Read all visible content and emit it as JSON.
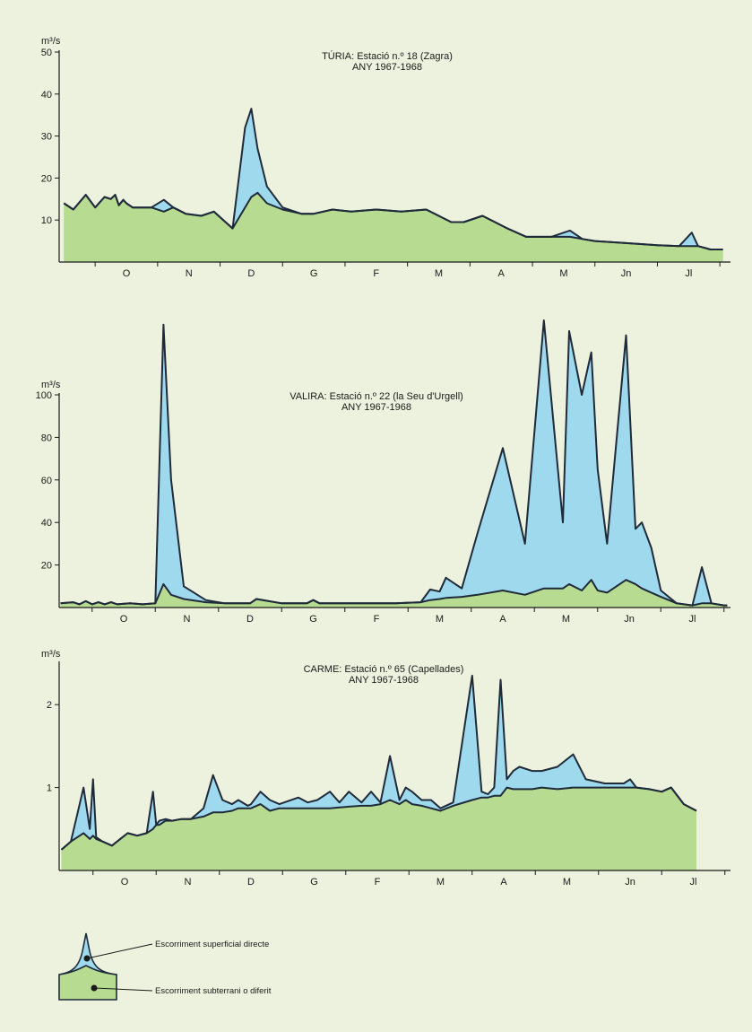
{
  "chart_data": [
    {
      "type": "area",
      "title": "TÚRIA: Estació n.º 18 (Zagra)",
      "subtitle": "ANY 1967-1968",
      "ylabel": "m³/s",
      "ylim": [
        0,
        50
      ],
      "yticks": [
        "10",
        "20",
        "30",
        "40",
        "50"
      ],
      "ytick_values": [
        10,
        20,
        30,
        40,
        50
      ],
      "months": [
        "O",
        "N",
        "D",
        "G",
        "F",
        "M",
        "A",
        "M",
        "Jn",
        "Jl"
      ],
      "month_positions": [
        1,
        2,
        3,
        4,
        5,
        6,
        7,
        8,
        9,
        10
      ],
      "xlim": [
        0,
        10.55
      ],
      "series": [
        {
          "kind": "total",
          "x": [
            0,
            0.15,
            0.35,
            0.5,
            0.65,
            0.75,
            0.82,
            0.88,
            0.95,
            1.0,
            1.1,
            1.4,
            1.6,
            1.75,
            1.95,
            2.2,
            2.4,
            2.7,
            2.9,
            3.0,
            3.1,
            3.25,
            3.5,
            3.8,
            4.0,
            4.3,
            4.6,
            5.0,
            5.4,
            5.8,
            6.0,
            6.2,
            6.4,
            6.7,
            6.9,
            7.1,
            7.4,
            7.8,
            8.1,
            8.3,
            8.5,
            9.0,
            9.5,
            9.85,
            10.05,
            10.15,
            10.35,
            10.55
          ],
          "y": [
            14,
            12.5,
            16,
            13,
            15.5,
            15,
            16,
            13.5,
            14.8,
            14,
            13,
            13,
            14.8,
            13,
            11.5,
            11,
            12,
            8,
            32,
            36.5,
            27,
            18,
            13,
            11.5,
            11.5,
            12.5,
            12,
            12.5,
            12,
            12.5,
            11,
            9.5,
            9.5,
            11,
            9.5,
            8,
            6,
            6,
            7.5,
            5.5,
            5,
            4.5,
            4,
            3.8,
            7,
            3.8,
            3,
            3
          ]
        },
        {
          "kind": "base",
          "x": [
            0,
            0.15,
            0.35,
            0.5,
            0.65,
            0.75,
            0.82,
            0.88,
            0.95,
            1.0,
            1.1,
            1.4,
            1.6,
            1.75,
            1.95,
            2.2,
            2.4,
            2.7,
            2.9,
            3.0,
            3.1,
            3.25,
            3.5,
            3.8,
            4.0,
            4.3,
            4.6,
            5.0,
            5.4,
            5.8,
            6.0,
            6.2,
            6.4,
            6.7,
            6.9,
            7.1,
            7.4,
            7.8,
            8.1,
            8.3,
            8.5,
            9.0,
            9.5,
            9.85,
            10.05,
            10.15,
            10.35,
            10.55
          ],
          "y": [
            14,
            12.5,
            16,
            13,
            15.5,
            15,
            16,
            13.5,
            14.8,
            14,
            13,
            13,
            12,
            13,
            11.5,
            11,
            12,
            8,
            13,
            15.5,
            16.5,
            14,
            12.5,
            11.5,
            11.5,
            12.5,
            12,
            12.5,
            12,
            12.5,
            11,
            9.5,
            9.5,
            11,
            9.5,
            8,
            6,
            6,
            6,
            5.5,
            5,
            4.5,
            4,
            3.8,
            3.8,
            3.8,
            3,
            3
          ]
        }
      ]
    },
    {
      "type": "area",
      "title": "VALIRA: Estació n.º 22 (la Seu d'Urgell)",
      "subtitle": "ANY 1967-1968",
      "ylabel": "m³/s",
      "ylim": [
        0,
        100
      ],
      "yticks": [
        "20",
        "40",
        "60",
        "80",
        "100"
      ],
      "ytick_values": [
        20,
        40,
        60,
        80,
        100
      ],
      "months": [
        "O",
        "N",
        "D",
        "G",
        "F",
        "M",
        "A",
        "M",
        "Jn",
        "Jl"
      ],
      "month_positions": [
        1,
        2,
        3,
        4,
        5,
        6,
        7,
        8,
        9,
        10
      ],
      "xlim": [
        0,
        10.55
      ],
      "series": [
        {
          "kind": "total",
          "x": [
            0,
            0.2,
            0.3,
            0.4,
            0.5,
            0.6,
            0.7,
            0.8,
            0.9,
            1.1,
            1.3,
            1.5,
            1.63,
            1.75,
            1.95,
            2.3,
            2.6,
            2.9,
            3.0,
            3.1,
            3.5,
            3.9,
            4.0,
            4.1,
            4.5,
            5.0,
            5.3,
            5.7,
            5.85,
            6.0,
            6.1,
            6.35,
            6.6,
            7.0,
            7.35,
            7.65,
            7.95,
            8.05,
            8.25,
            8.4,
            8.5,
            8.65,
            8.95,
            9.1,
            9.2,
            9.35,
            9.5,
            9.75,
            10.0,
            10.15,
            10.3,
            10.5,
            10.55
          ],
          "y": [
            2,
            2.5,
            1.5,
            3,
            1.5,
            2.5,
            1.5,
            2.5,
            1.5,
            2,
            1.5,
            2,
            133,
            60,
            10,
            3.5,
            2,
            2,
            2,
            4,
            2,
            2,
            3.5,
            2,
            2,
            2,
            2,
            2.5,
            8.5,
            7.5,
            14,
            9,
            35,
            75,
            30,
            135,
            40,
            130,
            100,
            120,
            65,
            30,
            128,
            37,
            40,
            28,
            8,
            2,
            1,
            19,
            2,
            1,
            1
          ]
        },
        {
          "kind": "base",
          "x": [
            0,
            0.2,
            0.3,
            0.4,
            0.5,
            0.6,
            0.7,
            0.8,
            0.9,
            1.1,
            1.3,
            1.5,
            1.63,
            1.75,
            1.95,
            2.3,
            2.6,
            2.9,
            3.0,
            3.1,
            3.5,
            3.9,
            4.0,
            4.1,
            4.5,
            5.0,
            5.3,
            5.7,
            5.85,
            6.0,
            6.1,
            6.35,
            6.6,
            7.0,
            7.35,
            7.65,
            7.95,
            8.05,
            8.25,
            8.4,
            8.5,
            8.65,
            8.95,
            9.1,
            9.2,
            9.35,
            9.5,
            9.75,
            10.0,
            10.15,
            10.3,
            10.5,
            10.55
          ],
          "y": [
            2,
            2.5,
            1.5,
            3,
            1.5,
            2.5,
            1.5,
            2.5,
            1.5,
            2,
            1.5,
            2,
            11,
            6,
            4,
            2.5,
            2,
            2,
            2,
            4,
            2,
            2,
            3.5,
            2,
            2,
            2,
            2,
            2.5,
            3.5,
            4,
            4.5,
            5,
            6,
            8,
            6,
            9,
            9,
            11,
            8,
            13,
            8,
            7,
            13,
            11,
            9,
            7,
            5,
            2,
            1,
            2,
            2,
            1,
            1
          ]
        }
      ]
    },
    {
      "type": "area",
      "title": "CARME: Estació n.º 65 (Capellades)",
      "subtitle": "ANY 1967-1968",
      "ylabel": "m³/s",
      "ylim": [
        0,
        2.5
      ],
      "yticks": [
        "1",
        "2"
      ],
      "ytick_values": [
        1,
        2
      ],
      "months": [
        "O",
        "N",
        "D",
        "G",
        "F",
        "M",
        "A",
        "M",
        "Jn",
        "Jl"
      ],
      "month_positions": [
        1,
        2,
        3,
        4,
        5,
        6,
        7,
        8,
        9,
        10
      ],
      "xlim": [
        0,
        10.55
      ],
      "series": [
        {
          "kind": "total",
          "x": [
            0,
            0.15,
            0.35,
            0.45,
            0.5,
            0.55,
            0.65,
            0.8,
            1.05,
            1.2,
            1.35,
            1.45,
            1.5,
            1.55,
            1.65,
            1.75,
            1.9,
            2.05,
            2.25,
            2.4,
            2.55,
            2.7,
            2.8,
            2.95,
            3.0,
            3.15,
            3.3,
            3.45,
            3.75,
            3.9,
            4.05,
            4.25,
            4.4,
            4.55,
            4.75,
            4.9,
            5.05,
            5.2,
            5.35,
            5.45,
            5.55,
            5.7,
            5.85,
            6.0,
            6.2,
            6.5,
            6.65,
            6.75,
            6.85,
            6.95,
            7.05,
            7.15,
            7.25,
            7.45,
            7.6,
            7.85,
            8.1,
            8.3,
            8.6,
            8.9,
            9.0,
            9.1,
            9.3,
            9.5,
            9.65,
            9.85,
            10.05
          ],
          "y": [
            0.25,
            0.35,
            1.0,
            0.5,
            1.1,
            0.4,
            0.35,
            0.3,
            0.45,
            0.42,
            0.45,
            0.95,
            0.55,
            0.6,
            0.62,
            0.6,
            0.62,
            0.62,
            0.75,
            1.15,
            0.85,
            0.8,
            0.85,
            0.78,
            0.8,
            0.95,
            0.85,
            0.8,
            0.88,
            0.82,
            0.85,
            0.95,
            0.82,
            0.95,
            0.82,
            0.95,
            0.82,
            1.38,
            0.85,
            1.0,
            0.95,
            0.85,
            0.85,
            0.75,
            0.82,
            2.35,
            0.95,
            0.92,
            1.0,
            2.3,
            1.1,
            1.2,
            1.25,
            1.2,
            1.2,
            1.25,
            1.4,
            1.1,
            1.05,
            1.05,
            1.1,
            1.0,
            0.98,
            0.95,
            1.0,
            0.8,
            0.72
          ]
        },
        {
          "kind": "base",
          "x": [
            0,
            0.15,
            0.35,
            0.45,
            0.5,
            0.55,
            0.65,
            0.8,
            1.05,
            1.2,
            1.35,
            1.45,
            1.5,
            1.55,
            1.65,
            1.75,
            1.9,
            2.05,
            2.25,
            2.4,
            2.55,
            2.7,
            2.8,
            2.95,
            3.0,
            3.15,
            3.3,
            3.45,
            3.75,
            3.9,
            4.05,
            4.25,
            4.4,
            4.55,
            4.75,
            4.9,
            5.05,
            5.2,
            5.35,
            5.45,
            5.55,
            5.7,
            5.85,
            6.0,
            6.2,
            6.5,
            6.65,
            6.75,
            6.85,
            6.95,
            7.05,
            7.15,
            7.25,
            7.45,
            7.6,
            7.85,
            8.1,
            8.3,
            8.6,
            8.9,
            9.0,
            9.1,
            9.3,
            9.5,
            9.65,
            9.85,
            10.05
          ],
          "y": [
            0.25,
            0.35,
            0.45,
            0.38,
            0.42,
            0.38,
            0.35,
            0.3,
            0.45,
            0.42,
            0.45,
            0.5,
            0.55,
            0.55,
            0.6,
            0.6,
            0.62,
            0.62,
            0.65,
            0.7,
            0.7,
            0.72,
            0.75,
            0.75,
            0.75,
            0.8,
            0.72,
            0.75,
            0.75,
            0.75,
            0.75,
            0.75,
            0.76,
            0.77,
            0.78,
            0.78,
            0.8,
            0.85,
            0.8,
            0.85,
            0.8,
            0.78,
            0.75,
            0.72,
            0.78,
            0.85,
            0.88,
            0.88,
            0.9,
            0.9,
            1.0,
            0.98,
            0.98,
            0.98,
            1.0,
            0.98,
            1.0,
            1.0,
            1.0,
            1.0,
            1.0,
            1.0,
            0.98,
            0.95,
            1.0,
            0.8,
            0.72
          ]
        }
      ]
    }
  ],
  "legend": {
    "direct_label": "Escorriment superficial directe",
    "base_label": "Escorriment subterrani o diferit"
  },
  "colors": {
    "direct": "#9fd9ee",
    "base": "#b7dc91",
    "outline": "#1f2a3a",
    "background": "#edf2de"
  }
}
